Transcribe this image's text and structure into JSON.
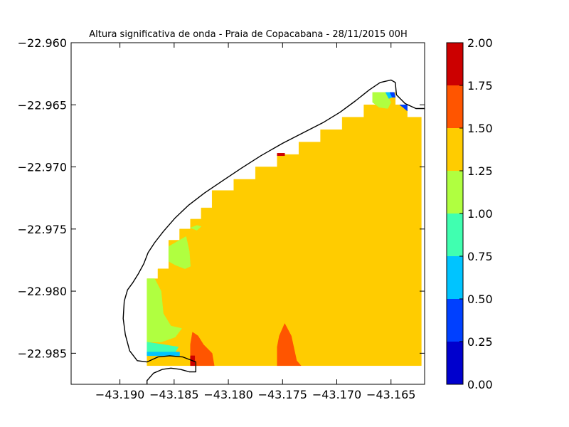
{
  "chart_data": {
    "type": "heatmap",
    "subtype": "filled-contour-map",
    "title": "Altura significativa de onda - Praia de Copacabana - 28/11/2015 00H",
    "xlabel": "",
    "ylabel": "",
    "xlim": [
      -43.1945,
      -43.1619
    ],
    "ylim": [
      -22.9875,
      -22.96
    ],
    "x_ticks": [
      -43.19,
      -43.185,
      -43.18,
      -43.175,
      -43.17,
      -43.165
    ],
    "x_tick_labels": [
      "−43.190",
      "−43.185",
      "−43.180",
      "−43.175",
      "−43.170",
      "−43.165"
    ],
    "y_ticks": [
      -22.96,
      -22.965,
      -22.97,
      -22.975,
      -22.98,
      -22.985
    ],
    "y_tick_labels": [
      "−22.960",
      "−22.965",
      "−22.970",
      "−22.975",
      "−22.980",
      "−22.985"
    ],
    "grid": false,
    "colorbar": {
      "position": "right",
      "levels": [
        0.0,
        0.25,
        0.5,
        0.75,
        1.0,
        1.25,
        1.5,
        1.75,
        2.0
      ],
      "tick_labels": [
        "0.00",
        "0.25",
        "0.50",
        "0.75",
        "1.00",
        "1.25",
        "1.50",
        "1.75",
        "2.00"
      ],
      "colors": [
        "#0000cd",
        "#0040ff",
        "#00c4ff",
        "#40ffb0",
        "#b0ff40",
        "#ffcc00",
        "#ff5500",
        "#cc0000"
      ]
    },
    "dominant_level_range": [
      1.25,
      1.5
    ],
    "coastline": [
      [
        -43.1875,
        -22.9875
      ],
      [
        -43.1875,
        -22.9872
      ],
      [
        -43.1869,
        -22.9866
      ],
      [
        -43.1861,
        -22.9863
      ],
      [
        -43.1853,
        -22.9862
      ],
      [
        -43.1844,
        -22.9863
      ],
      [
        -43.1836,
        -22.9865
      ],
      [
        -43.183,
        -22.9865
      ],
      [
        -43.183,
        -22.9857
      ],
      [
        -43.1842,
        -22.9853
      ],
      [
        -43.1854,
        -22.9852
      ],
      [
        -43.1865,
        -22.9853
      ],
      [
        -43.1875,
        -22.9857
      ],
      [
        -43.1884,
        -22.9856
      ],
      [
        -43.1891,
        -22.9848
      ],
      [
        -43.1895,
        -22.9835
      ],
      [
        -43.1897,
        -22.9822
      ],
      [
        -43.1896,
        -22.9808
      ],
      [
        -43.1893,
        -22.9799
      ],
      [
        -43.1888,
        -22.9793
      ],
      [
        -43.1883,
        -22.9786
      ],
      [
        -43.1878,
        -22.9778
      ],
      [
        -43.1874,
        -22.9769
      ],
      [
        -43.1868,
        -22.9761
      ],
      [
        -43.186,
        -22.9752
      ],
      [
        -43.1849,
        -22.9741
      ],
      [
        -43.1837,
        -22.9731
      ],
      [
        -43.1822,
        -22.9721
      ],
      [
        -43.1805,
        -22.9711
      ],
      [
        -43.1788,
        -22.9701
      ],
      [
        -43.177,
        -22.9691
      ],
      [
        -43.175,
        -22.9681
      ],
      [
        -43.173,
        -22.9672
      ],
      [
        -43.1712,
        -22.9664
      ],
      [
        -43.1697,
        -22.9656
      ],
      [
        -43.1683,
        -22.9647
      ],
      [
        -43.167,
        -22.9638
      ],
      [
        -43.166,
        -22.9632
      ],
      [
        -43.165,
        -22.963
      ],
      [
        -43.1646,
        -22.9632
      ],
      [
        -43.1645,
        -22.9642
      ],
      [
        -43.1637,
        -22.9649
      ],
      [
        -43.1627,
        -22.9653
      ],
      [
        -43.1619,
        -22.9653
      ]
    ],
    "regions": [
      {
        "level": "1.25-1.50",
        "polygon": [
          [
            -43.1875,
            -22.986
          ],
          [
            -43.1875,
            -22.979
          ],
          [
            -43.1865,
            -22.979
          ],
          [
            -43.1865,
            -22.9782
          ],
          [
            -43.1855,
            -22.9782
          ],
          [
            -43.1855,
            -22.9759
          ],
          [
            -43.1845,
            -22.9759
          ],
          [
            -43.1845,
            -22.975
          ],
          [
            -43.1835,
            -22.975
          ],
          [
            -43.1835,
            -22.9742
          ],
          [
            -43.1825,
            -22.9742
          ],
          [
            -43.1825,
            -22.9733
          ],
          [
            -43.1815,
            -22.9733
          ],
          [
            -43.1815,
            -22.9719
          ],
          [
            -43.1795,
            -22.9719
          ],
          [
            -43.1795,
            -22.971
          ],
          [
            -43.1775,
            -22.971
          ],
          [
            -43.1775,
            -22.97
          ],
          [
            -43.1755,
            -22.97
          ],
          [
            -43.1755,
            -22.969
          ],
          [
            -43.1735,
            -22.969
          ],
          [
            -43.1735,
            -22.968
          ],
          [
            -43.1715,
            -22.968
          ],
          [
            -43.1715,
            -22.967
          ],
          [
            -43.1695,
            -22.967
          ],
          [
            -43.1695,
            -22.966
          ],
          [
            -43.1675,
            -22.966
          ],
          [
            -43.1675,
            -22.965
          ],
          [
            -43.1655,
            -22.965
          ],
          [
            -43.1655,
            -22.964
          ],
          [
            -43.1646,
            -22.964
          ],
          [
            -43.1646,
            -22.965
          ],
          [
            -43.1635,
            -22.965
          ],
          [
            -43.1635,
            -22.966
          ],
          [
            -43.1622,
            -22.966
          ],
          [
            -43.1622,
            -22.986
          ]
        ]
      },
      {
        "level": "1.00-1.25",
        "polygon": [
          [
            -43.1875,
            -22.9841
          ],
          [
            -43.1862,
            -22.9841
          ],
          [
            -43.1849,
            -22.9837
          ],
          [
            -43.1843,
            -22.983
          ],
          [
            -43.1853,
            -22.9828
          ],
          [
            -43.186,
            -22.9818
          ],
          [
            -43.1862,
            -22.98
          ],
          [
            -43.1868,
            -22.979
          ],
          [
            -43.1875,
            -22.979
          ]
        ]
      },
      {
        "level": "1.00-1.25",
        "polygon": [
          [
            -43.1855,
            -22.9764
          ],
          [
            -43.1847,
            -22.976
          ],
          [
            -43.1839,
            -22.9756
          ],
          [
            -43.1836,
            -22.9768
          ],
          [
            -43.1835,
            -22.978
          ],
          [
            -43.184,
            -22.9782
          ],
          [
            -43.1849,
            -22.9779
          ],
          [
            -43.1855,
            -22.9776
          ]
        ]
      },
      {
        "level": "1.00-1.25",
        "polygon": [
          [
            -43.1835,
            -22.9749
          ],
          [
            -43.1829,
            -22.9747
          ],
          [
            -43.1825,
            -22.9748
          ],
          [
            -43.1829,
            -22.9751
          ]
        ]
      },
      {
        "level": "1.00-1.25",
        "polygon": [
          [
            -43.1667,
            -22.964
          ],
          [
            -43.1655,
            -22.964
          ],
          [
            -43.165,
            -22.9648
          ],
          [
            -43.1653,
            -22.9653
          ],
          [
            -43.1661,
            -22.9652
          ],
          [
            -43.1667,
            -22.9648
          ]
        ]
      },
      {
        "level": "0.75-1.00",
        "polygon": [
          [
            -43.1875,
            -22.9849
          ],
          [
            -43.1849,
            -22.9849
          ],
          [
            -43.1846,
            -22.9845
          ],
          [
            -43.186,
            -22.9843
          ],
          [
            -43.1875,
            -22.9841
          ]
        ]
      },
      {
        "level": "0.50-0.75",
        "polygon": [
          [
            -43.1875,
            -22.9852
          ],
          [
            -43.1845,
            -22.9852
          ],
          [
            -43.1845,
            -22.9849
          ],
          [
            -43.1875,
            -22.9849
          ]
        ]
      },
      {
        "level": "0.50-0.75",
        "polygon": [
          [
            -43.1655,
            -22.964
          ],
          [
            -43.1651,
            -22.964
          ],
          [
            -43.1649,
            -22.9644
          ],
          [
            -43.1652,
            -22.9645
          ]
        ]
      },
      {
        "level": "0.25-0.50",
        "polygon": [
          [
            -43.1651,
            -22.964
          ],
          [
            -43.1647,
            -22.964
          ],
          [
            -43.1646,
            -22.9644
          ],
          [
            -43.1649,
            -22.9644
          ]
        ]
      },
      {
        "level": "0.25-0.50",
        "polygon": [
          [
            -43.1642,
            -22.965
          ],
          [
            -43.1635,
            -22.965
          ],
          [
            -43.1635,
            -22.9655
          ],
          [
            -43.1639,
            -22.9652
          ]
        ]
      },
      {
        "level": "1.50-1.75",
        "polygon": [
          [
            -43.1835,
            -22.986
          ],
          [
            -43.1813,
            -22.986
          ],
          [
            -43.1815,
            -22.985
          ],
          [
            -43.1823,
            -22.9843
          ],
          [
            -43.1828,
            -22.9836
          ],
          [
            -43.1833,
            -22.9833
          ],
          [
            -43.1835,
            -22.9843
          ]
        ]
      },
      {
        "level": "1.50-1.75",
        "polygon": [
          [
            -43.1755,
            -22.986
          ],
          [
            -43.1733,
            -22.986
          ],
          [
            -43.1737,
            -22.9856
          ],
          [
            -43.1742,
            -22.9836
          ],
          [
            -43.1748,
            -22.9826
          ],
          [
            -43.1753,
            -22.9836
          ],
          [
            -43.1755,
            -22.9845
          ]
        ]
      },
      {
        "level": "1.75-2.00",
        "polygon": [
          [
            -43.1835,
            -22.986
          ],
          [
            -43.1831,
            -22.986
          ],
          [
            -43.1831,
            -22.9852
          ],
          [
            -43.1835,
            -22.9852
          ]
        ]
      },
      {
        "level": "1.75-2.00",
        "polygon": [
          [
            -43.1755,
            -22.9691
          ],
          [
            -43.1748,
            -22.9691
          ],
          [
            -43.1748,
            -22.9689
          ],
          [
            -43.1755,
            -22.9689
          ]
        ]
      }
    ]
  }
}
